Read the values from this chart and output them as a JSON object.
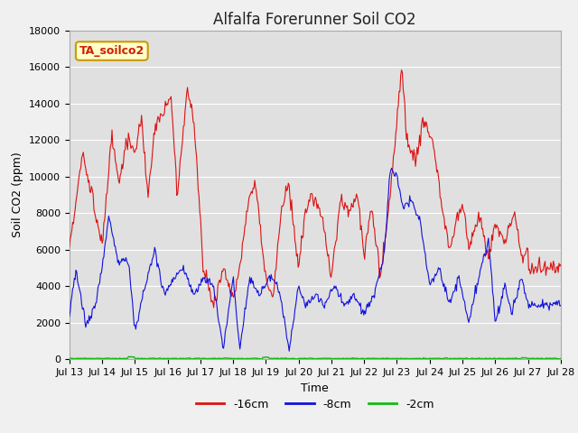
{
  "title": "Alfalfa Forerunner Soil CO2",
  "xlabel": "Time",
  "ylabel": "Soil CO2 (ppm)",
  "ylim": [
    0,
    18000
  ],
  "yticks": [
    0,
    2000,
    4000,
    6000,
    8000,
    10000,
    12000,
    14000,
    16000,
    18000
  ],
  "legend_label": "TA_soilco2",
  "line_labels": [
    "-16cm",
    "-8cm",
    "-2cm"
  ],
  "line_colors": [
    "#dd1111",
    "#1111dd",
    "#11bb11"
  ],
  "background_color": "#f0f0f0",
  "plot_bg_color": "#e0e0e0",
  "title_color": "#222222",
  "title_fontsize": 12,
  "axis_fontsize": 9,
  "tick_fontsize": 8,
  "n_points": 600,
  "x_start": 13,
  "x_end": 28,
  "x_ticks": [
    13,
    14,
    15,
    16,
    17,
    18,
    19,
    20,
    21,
    22,
    23,
    24,
    25,
    26,
    27,
    28
  ],
  "x_tick_labels": [
    "Jul 13",
    "Jul 14",
    "Jul 15",
    "Jul 16",
    "Jul 17",
    "Jul 18",
    "Jul 19",
    "Jul 20",
    "Jul 21",
    "Jul 22",
    "Jul 23",
    "Jul 24",
    "Jul 25",
    "Jul 26",
    "Jul 27",
    "Jul 28"
  ],
  "legend_box_color": "#ffffcc",
  "legend_box_edge": "#cc9900",
  "legend_text_color": "#cc2200"
}
